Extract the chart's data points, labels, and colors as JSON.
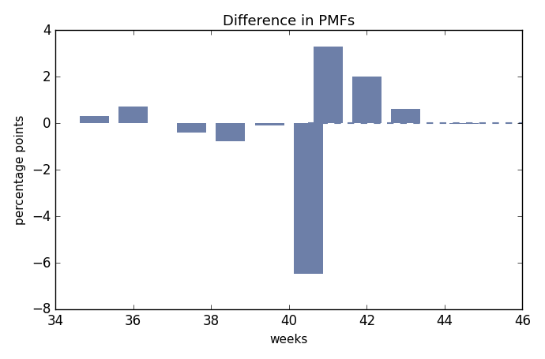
{
  "title": "Difference in PMFs",
  "xlabel": "weeks",
  "ylabel": "percentage points",
  "xlim": [
    34,
    46
  ],
  "ylim": [
    -8,
    4
  ],
  "xticks": [
    34,
    36,
    38,
    40,
    42,
    44,
    46
  ],
  "yticks": [
    -8,
    -6,
    -4,
    -2,
    0,
    2,
    4
  ],
  "bar_weeks": [
    35.0,
    36.0,
    37.5,
    38.5,
    39.5,
    40.5,
    41.0,
    42.0,
    43.0,
    44.5
  ],
  "bar_values": [
    0.3,
    0.7,
    -0.4,
    -0.8,
    -0.1,
    -6.5,
    3.3,
    2.0,
    0.6,
    -0.05
  ],
  "bar_color": "#6d7fa8",
  "bar_width": 0.75,
  "line_color": "#6d7fa8",
  "line_style": "--",
  "line_y": 0,
  "line_xstart": 40.5,
  "line_xend": 46,
  "background_color": "#ffffff",
  "figsize": [
    6.9,
    4.56
  ],
  "dpi": 100
}
